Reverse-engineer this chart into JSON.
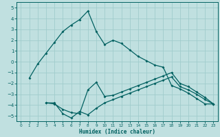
{
  "xlabel": "Humidex (Indice chaleur)",
  "bg_color": "#c0e0e0",
  "grid_color": "#a0cccc",
  "line_color": "#006060",
  "xlim": [
    -0.5,
    23.5
  ],
  "ylim": [
    -5.5,
    5.5
  ],
  "yticks": [
    -5,
    -4,
    -3,
    -2,
    -1,
    0,
    1,
    2,
    3,
    4,
    5
  ],
  "xticks": [
    0,
    1,
    2,
    3,
    4,
    5,
    6,
    7,
    8,
    9,
    10,
    11,
    12,
    13,
    14,
    15,
    16,
    17,
    18,
    19,
    20,
    21,
    22,
    23
  ],
  "line1_x": [
    1,
    2,
    3,
    4,
    5,
    6,
    7,
    8,
    9,
    10,
    11,
    12,
    13,
    14,
    15,
    16,
    17,
    18,
    19,
    20,
    21,
    22,
    23
  ],
  "line1_y": [
    -1.5,
    -0.2,
    0.8,
    1.8,
    2.8,
    3.4,
    3.9,
    4.7,
    2.8,
    1.6,
    2.0,
    1.7,
    1.1,
    0.5,
    0.1,
    -0.3,
    -0.5,
    -2.2,
    -2.5,
    -2.9,
    -3.4,
    -3.9,
    -3.9
  ],
  "line2_x": [
    3,
    4,
    5,
    6,
    7,
    8,
    9,
    10,
    11,
    12,
    13,
    14,
    15,
    16,
    17,
    18,
    19,
    20,
    21,
    22,
    23
  ],
  "line2_y": [
    -3.8,
    -3.8,
    -4.8,
    -5.2,
    -4.6,
    -4.9,
    -4.3,
    -3.8,
    -3.5,
    -3.2,
    -2.9,
    -2.6,
    -2.3,
    -2.0,
    -1.7,
    -1.4,
    -2.3,
    -2.6,
    -3.0,
    -3.5,
    -3.9
  ],
  "line3_x": [
    3,
    4,
    5,
    6,
    7,
    8,
    9,
    10,
    11,
    12,
    13,
    14,
    15,
    16,
    17,
    18,
    19,
    20,
    21,
    22,
    23
  ],
  "line3_y": [
    -3.8,
    -3.9,
    -4.4,
    -4.7,
    -4.8,
    -2.6,
    -1.9,
    -3.2,
    -3.1,
    -2.8,
    -2.5,
    -2.2,
    -1.9,
    -1.6,
    -1.3,
    -1.0,
    -2.0,
    -2.3,
    -2.8,
    -3.3,
    -3.9
  ]
}
